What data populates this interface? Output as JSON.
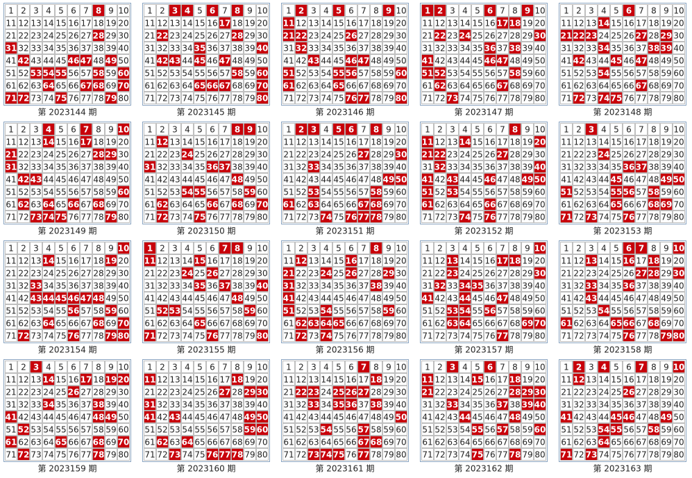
{
  "numbers": [
    1,
    2,
    3,
    4,
    5,
    6,
    7,
    8,
    9,
    10,
    11,
    12,
    13,
    14,
    15,
    16,
    17,
    18,
    19,
    20,
    21,
    22,
    23,
    24,
    25,
    26,
    27,
    28,
    29,
    30,
    31,
    32,
    33,
    34,
    35,
    36,
    37,
    38,
    39,
    40,
    41,
    42,
    43,
    44,
    45,
    46,
    47,
    48,
    49,
    50,
    51,
    52,
    53,
    54,
    55,
    56,
    57,
    58,
    59,
    60,
    61,
    62,
    63,
    64,
    65,
    66,
    67,
    68,
    69,
    70,
    71,
    72,
    73,
    74,
    75,
    76,
    77,
    78,
    79,
    80
  ],
  "panels": [
    {
      "label": "第 2023144 期",
      "hits": [
        8,
        28,
        31,
        42,
        46,
        47,
        49,
        53,
        54,
        55,
        58,
        60,
        64,
        67,
        68,
        70,
        71,
        72,
        75,
        79
      ]
    },
    {
      "label": "第 2023145 期",
      "hits": [
        3,
        4,
        6,
        8,
        17,
        22,
        28,
        35,
        40,
        42,
        43,
        45,
        47,
        58,
        60,
        65,
        66,
        67,
        70,
        80
      ]
    },
    {
      "label": "第 2023146 期",
      "hits": [
        2,
        5,
        9,
        11,
        21,
        22,
        26,
        32,
        43,
        46,
        47,
        51,
        55,
        56,
        60,
        61,
        65,
        76,
        77,
        80
      ]
    },
    {
      "label": "第 2023147 期",
      "hits": [
        1,
        2,
        6,
        9,
        17,
        18,
        22,
        24,
        30,
        36,
        38,
        41,
        46,
        47,
        51,
        52,
        58,
        62,
        67,
        73
      ]
    },
    {
      "label": "第 2023148 期",
      "hits": [
        6,
        14,
        21,
        22,
        23,
        27,
        29,
        34,
        38,
        39,
        42,
        45,
        47,
        54,
        67,
        72,
        74,
        75
      ]
    },
    {
      "label": "第 2023149 期",
      "hits": [
        4,
        7,
        10,
        14,
        17,
        21,
        28,
        29,
        31,
        42,
        43,
        60,
        62,
        64,
        66,
        68,
        73,
        74,
        75,
        79
      ]
    },
    {
      "label": "第 2023150 期",
      "hits": [
        8,
        9,
        12,
        24,
        31,
        36,
        37,
        48,
        54,
        55,
        59,
        62,
        66,
        68,
        70,
        72,
        75
      ]
    },
    {
      "label": "第 2023151 期",
      "hits": [
        2,
        3,
        5,
        6,
        8,
        27,
        30,
        33,
        49,
        50,
        53,
        58,
        61,
        63,
        67,
        68,
        74,
        76,
        77,
        78
      ]
    },
    {
      "label": "第 2023152 期",
      "hits": [
        8,
        11,
        14,
        20,
        21,
        22,
        27,
        32,
        40,
        41,
        43,
        46,
        49,
        50,
        51,
        53,
        61,
        66,
        74,
        76
      ]
    },
    {
      "label": "第 2023153 期",
      "hits": [
        3,
        24,
        36,
        37,
        45,
        49,
        50,
        51,
        55,
        56,
        58,
        65,
        68,
        69,
        71,
        73,
        76
      ]
    },
    {
      "label": "第 2023154 期",
      "hits": [
        10,
        14,
        19,
        33,
        43,
        44,
        45,
        46,
        47,
        48,
        56,
        59,
        64,
        68,
        70,
        72,
        76,
        79,
        80
      ]
    },
    {
      "label": "第 2023155 期",
      "hits": [
        1,
        7,
        8,
        11,
        15,
        24,
        26,
        35,
        37,
        40,
        48,
        52,
        53,
        59,
        65,
        71,
        76,
        80
      ]
    },
    {
      "label": "第 2023156 期",
      "hits": [
        8,
        12,
        16,
        21,
        24,
        26,
        29,
        31,
        38,
        41,
        51,
        54,
        59,
        62,
        63,
        64,
        65,
        72,
        74
      ]
    },
    {
      "label": "第 2023157 期",
      "hits": [
        10,
        13,
        17,
        18,
        23,
        30,
        32,
        34,
        35,
        41,
        44,
        47,
        53,
        54,
        56,
        63,
        64,
        69,
        70,
        77
      ]
    },
    {
      "label": "第 2023158 期",
      "hits": [
        6,
        7,
        10,
        13,
        16,
        18,
        27,
        28,
        30,
        33,
        36,
        43,
        54,
        61,
        65,
        66,
        68,
        76,
        79,
        80
      ]
    },
    {
      "label": "第 2023159 期",
      "hits": [
        3,
        14,
        17,
        19,
        20,
        26,
        34,
        38,
        41,
        48,
        49,
        52,
        61,
        65,
        68,
        70,
        72,
        78
      ]
    },
    {
      "label": "第 2023160 期",
      "hits": [
        11,
        18,
        27,
        29,
        30,
        31,
        41,
        43,
        49,
        50,
        59,
        60,
        62,
        64,
        73,
        76,
        77,
        78
      ]
    },
    {
      "label": "第 2023161 期",
      "hits": [
        7,
        18,
        22,
        23,
        25,
        26,
        27,
        33,
        35,
        36,
        38,
        50,
        54,
        57,
        67,
        68,
        73,
        74,
        75,
        77
      ]
    },
    {
      "label": "第 2023162 期",
      "hits": [
        3,
        6,
        11,
        15,
        18,
        21,
        28,
        29,
        30,
        33,
        37,
        39,
        40,
        44,
        48,
        55,
        57,
        60,
        75,
        78
      ]
    },
    {
      "label": "第 2023163 期",
      "hits": [
        2,
        4,
        7,
        10,
        12,
        26,
        41,
        45,
        46,
        49,
        54,
        55,
        58,
        64,
        71,
        73
      ]
    }
  ]
}
